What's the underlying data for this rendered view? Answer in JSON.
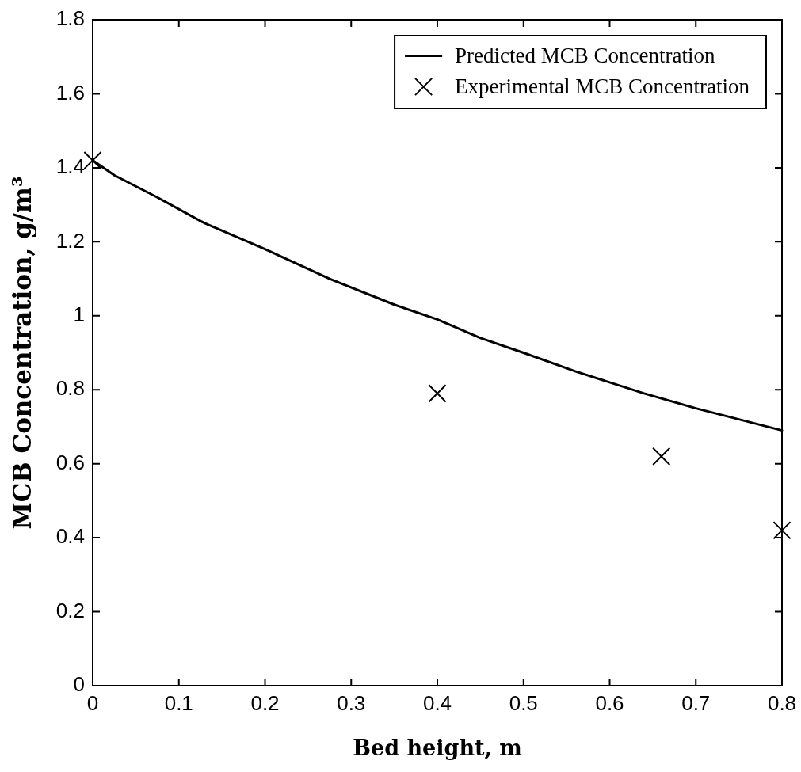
{
  "chart_data": {
    "type": "line",
    "xlabel": "Bed height, m",
    "ylabel": "MCB Concentration, g/m³",
    "xlim": [
      0,
      0.8
    ],
    "xticks": [
      0,
      0.1,
      0.2,
      0.3,
      0.4,
      0.5,
      0.6,
      0.7,
      0.8
    ],
    "ylim": [
      0,
      1.8
    ],
    "yticks": [
      0,
      0.2,
      0.4,
      0.6,
      0.8,
      1,
      1.2,
      1.4,
      1.6,
      1.8
    ],
    "legend": "top right",
    "series": [
      {
        "name": "Predicted MCB Concentration",
        "color": "#000000",
        "marker": "none",
        "line_style": "solid",
        "x": [
          0,
          0.025,
          0.075,
          0.13,
          0.2,
          0.275,
          0.35,
          0.4,
          0.45,
          0.5,
          0.56,
          0.64,
          0.7,
          0.8
        ],
        "values": [
          1.42,
          1.38,
          1.32,
          1.25,
          1.18,
          1.1,
          1.03,
          0.99,
          0.94,
          0.9,
          0.85,
          0.79,
          0.75,
          0.69
        ]
      },
      {
        "name": "Experimental MCB Concentration",
        "type": "scatter",
        "color": "#000000",
        "marker": "cross",
        "x": [
          0,
          0.4,
          0.66,
          0.8
        ],
        "values": [
          1.42,
          0.79,
          0.62,
          0.42
        ]
      }
    ]
  }
}
